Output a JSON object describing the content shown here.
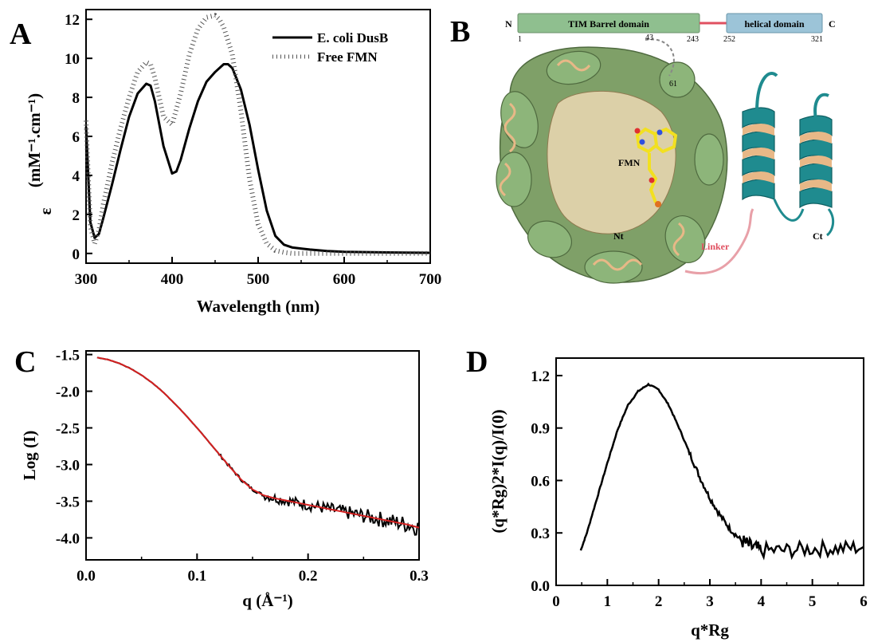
{
  "panels": {
    "a": {
      "letter": "A"
    },
    "b": {
      "letter": "B"
    },
    "c": {
      "letter": "C"
    },
    "d": {
      "letter": "D"
    }
  },
  "structure": {
    "n_terminus": "N",
    "c_terminus": "C",
    "domain1": {
      "name": "TIM Barrel domain",
      "start": "1",
      "end": "243",
      "color": "#8fbf8f"
    },
    "domain2": {
      "name": "helical domain",
      "start": "252",
      "end": "321",
      "color": "#9cc4d8"
    },
    "linker_color": "#e05060",
    "labels": {
      "res43": "43",
      "res61": "61",
      "fmn": "FMN",
      "nt": "Nt",
      "ct": "Ct",
      "linker": "Linker"
    },
    "colors": {
      "barrel": "#7a9a62",
      "barrel_inner": "#e8b887",
      "helix": "#1f8b8f",
      "fmn": "#f2e020",
      "linker": "#e8a0a8"
    }
  },
  "chart_data": [
    {
      "type": "line",
      "panel": "A",
      "xlabel": "Wavelength (nm)",
      "ylabel": "(mM⁻¹.cm⁻¹)",
      "ylabel_symbol": "ε",
      "xlim": [
        300,
        700
      ],
      "ylim": [
        -0.5,
        12.5
      ],
      "xticks": [
        "300",
        "400",
        "500",
        "600",
        "700"
      ],
      "yticks": [
        "0",
        "2",
        "4",
        "6",
        "8",
        "10",
        "12"
      ],
      "legend_position": "top-right",
      "series": [
        {
          "name": "E. coli DusB",
          "style": "solid",
          "x": [
            300,
            305,
            310,
            315,
            320,
            330,
            340,
            350,
            360,
            370,
            375,
            380,
            390,
            400,
            405,
            410,
            420,
            430,
            440,
            450,
            460,
            465,
            470,
            480,
            490,
            500,
            510,
            520,
            530,
            540,
            560,
            580,
            600,
            650,
            700
          ],
          "y": [
            6.5,
            1.6,
            0.8,
            1.0,
            1.8,
            3.5,
            5.3,
            7.0,
            8.2,
            8.7,
            8.6,
            7.8,
            5.5,
            4.1,
            4.2,
            4.8,
            6.4,
            7.8,
            8.8,
            9.3,
            9.7,
            9.7,
            9.5,
            8.4,
            6.6,
            4.3,
            2.2,
            0.9,
            0.45,
            0.3,
            0.2,
            0.12,
            0.08,
            0.05,
            0.03
          ]
        },
        {
          "name": "Free FMN",
          "style": "dotted",
          "x": [
            300,
            305,
            310,
            315,
            320,
            330,
            340,
            350,
            360,
            370,
            375,
            380,
            390,
            400,
            410,
            420,
            430,
            440,
            450,
            455,
            460,
            470,
            480,
            490,
            500,
            510,
            520,
            530,
            540,
            600,
            700
          ],
          "y": [
            6.8,
            1.4,
            0.5,
            1.2,
            2.5,
            4.6,
            6.4,
            8.0,
            9.3,
            9.8,
            9.7,
            9.0,
            7.0,
            6.6,
            8.2,
            10.2,
            11.5,
            12.1,
            12.2,
            12.0,
            11.6,
            10.2,
            7.3,
            3.8,
            1.5,
            0.5,
            0.15,
            0.05,
            0.0,
            0.0,
            0.0
          ]
        }
      ]
    },
    {
      "type": "line",
      "panel": "C",
      "xlabel": "q (Å⁻¹)",
      "ylabel": "Log (I)",
      "xlim": [
        0.0,
        0.3
      ],
      "ylim": [
        -4.3,
        -1.45
      ],
      "xticks": [
        "0.0",
        "0.1",
        "0.2",
        "0.3"
      ],
      "yticks": [
        "-1.5",
        "-2.0",
        "-2.5",
        "-3.0",
        "-3.5",
        "-4.0"
      ],
      "series": [
        {
          "role": "experimental",
          "color": "#000000",
          "x": [
            0.01,
            0.02,
            0.03,
            0.04,
            0.05,
            0.06,
            0.07,
            0.08,
            0.09,
            0.1,
            0.11,
            0.12,
            0.13,
            0.14,
            0.15,
            0.16,
            0.17,
            0.18,
            0.19,
            0.2,
            0.21,
            0.22,
            0.23,
            0.24,
            0.25,
            0.26,
            0.27,
            0.28,
            0.29,
            0.3
          ],
          "y": [
            -1.54,
            -1.57,
            -1.62,
            -1.69,
            -1.78,
            -1.89,
            -2.02,
            -2.17,
            -2.33,
            -2.5,
            -2.68,
            -2.86,
            -3.04,
            -3.21,
            -3.34,
            -3.42,
            -3.46,
            -3.49,
            -3.52,
            -3.55,
            -3.58,
            -3.61,
            -3.64,
            -3.67,
            -3.7,
            -3.73,
            -3.76,
            -3.79,
            -3.82,
            -3.86
          ]
        },
        {
          "role": "fit",
          "color": "#d42020",
          "x": [
            0.01,
            0.02,
            0.03,
            0.04,
            0.05,
            0.06,
            0.07,
            0.08,
            0.09,
            0.1,
            0.11,
            0.12,
            0.13,
            0.14,
            0.15,
            0.16,
            0.17,
            0.18,
            0.19,
            0.2,
            0.21,
            0.22,
            0.23,
            0.24,
            0.25,
            0.26,
            0.27,
            0.28,
            0.29,
            0.3
          ],
          "y": [
            -1.54,
            -1.57,
            -1.62,
            -1.69,
            -1.78,
            -1.89,
            -2.02,
            -2.17,
            -2.33,
            -2.5,
            -2.68,
            -2.86,
            -3.04,
            -3.21,
            -3.34,
            -3.42,
            -3.46,
            -3.49,
            -3.52,
            -3.55,
            -3.58,
            -3.61,
            -3.64,
            -3.67,
            -3.7,
            -3.73,
            -3.76,
            -3.79,
            -3.82,
            -3.86
          ]
        }
      ]
    },
    {
      "type": "line",
      "panel": "D",
      "xlabel": "q*Rg",
      "ylabel": "(q*Rg)2*I(q)/I(0)",
      "xlim": [
        0,
        6
      ],
      "ylim": [
        0,
        1.3
      ],
      "xticks": [
        "0",
        "1",
        "2",
        "3",
        "4",
        "5",
        "6"
      ],
      "yticks": [
        "0.0",
        "0.3",
        "0.6",
        "0.9",
        "1.2"
      ],
      "series": [
        {
          "role": "kratky",
          "color": "#000000",
          "x": [
            0.48,
            0.6,
            0.8,
            1.0,
            1.2,
            1.4,
            1.6,
            1.8,
            2.0,
            2.2,
            2.4,
            2.6,
            2.8,
            3.0,
            3.2,
            3.4,
            3.6,
            3.8,
            4.0,
            4.5,
            5.0,
            5.5,
            6.0
          ],
          "y": [
            0.2,
            0.3,
            0.5,
            0.7,
            0.89,
            1.03,
            1.11,
            1.15,
            1.12,
            1.03,
            0.9,
            0.76,
            0.62,
            0.5,
            0.4,
            0.32,
            0.26,
            0.22,
            0.2,
            0.2,
            0.21,
            0.21,
            0.22
          ]
        }
      ]
    }
  ]
}
